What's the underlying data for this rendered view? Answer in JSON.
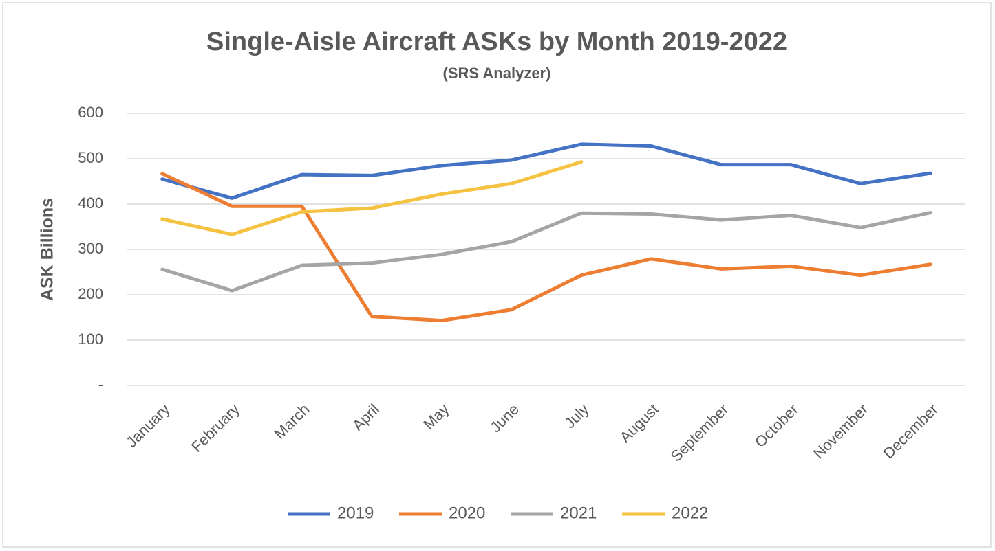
{
  "chart_data": {
    "type": "line",
    "title": "Single-Aisle Aircraft ASKs by Month 2019-2022",
    "subtitle": "(SRS Analyzer)",
    "y_label": "ASK Billions",
    "categories": [
      "January",
      "February",
      "March",
      "April",
      "May",
      "June",
      "July",
      "August",
      "September",
      "October",
      "November",
      "December"
    ],
    "series": [
      {
        "name": "2019",
        "color": "#4472c4",
        "values": [
          455,
          413,
          465,
          463,
          485,
          497,
          532,
          528,
          487,
          487,
          445,
          468
        ]
      },
      {
        "name": "2020",
        "color": "#ed7d31",
        "values": [
          467,
          395,
          395,
          152,
          143,
          167,
          243,
          279,
          257,
          263,
          243,
          267
        ]
      },
      {
        "name": "2021",
        "color": "#a5a5a5",
        "values": [
          256,
          209,
          265,
          270,
          289,
          317,
          380,
          378,
          365,
          375,
          348,
          381
        ]
      },
      {
        "name": "2022",
        "color": "#f5c242",
        "values": [
          367,
          333,
          383,
          391,
          422,
          445,
          493,
          null,
          null,
          null,
          null,
          null
        ]
      }
    ],
    "ylim": [
      0,
      600
    ],
    "yticks": [
      {
        "value": 0,
        "label": "-"
      },
      100,
      200,
      300,
      400,
      500,
      600
    ],
    "grid": true,
    "legend": "bottom"
  }
}
